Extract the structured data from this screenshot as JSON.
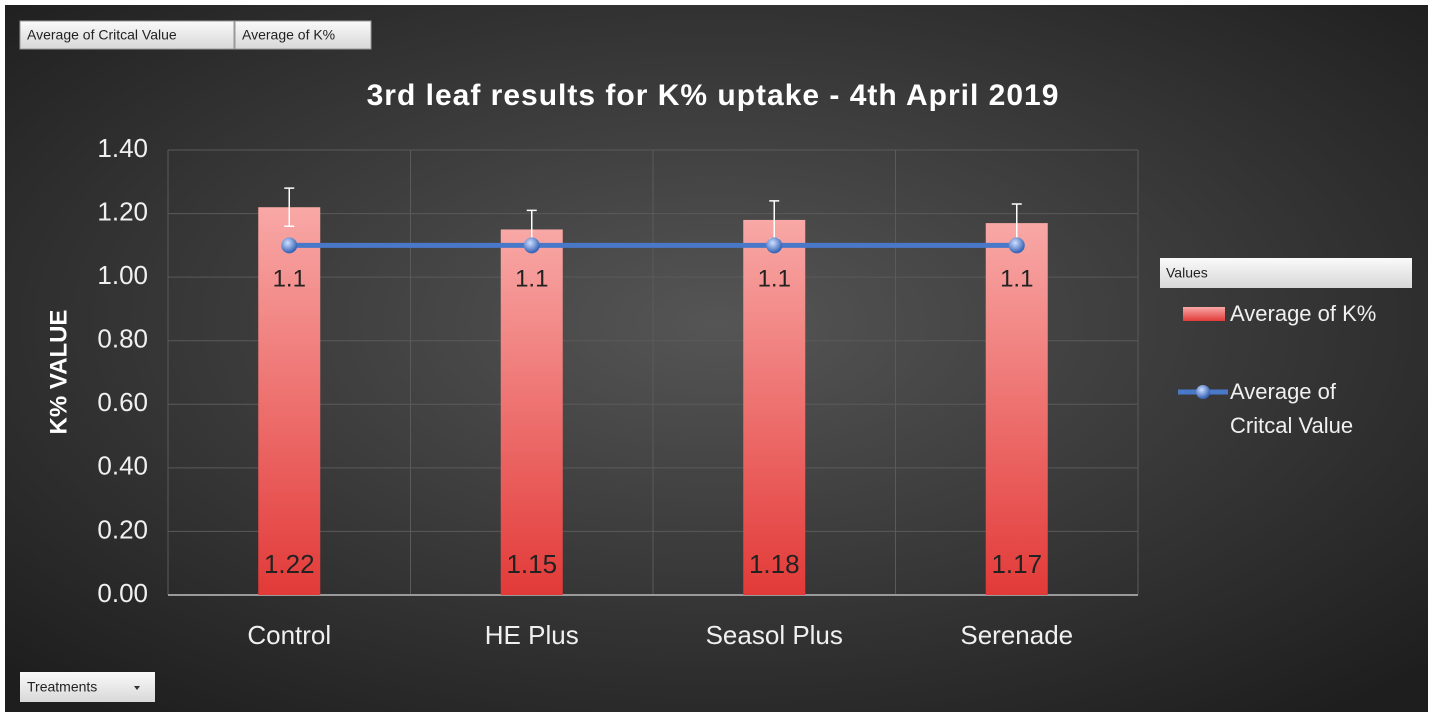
{
  "chart_data": {
    "type": "bar",
    "title": "3rd leaf results for K% uptake - 4th April 2019",
    "y_label": "K% VALUE",
    "filter_buttons": [
      "Average of Critcal Value",
      "Average of K%"
    ],
    "axis_field_button": "Treatments",
    "legend_title": "Values",
    "categories": [
      "Control",
      "HE Plus",
      "Seasol Plus",
      "Serenade"
    ],
    "series": [
      {
        "name": "Average of K%",
        "type": "bar",
        "color": "#e8403f",
        "values": [
          1.22,
          1.15,
          1.18,
          1.17
        ],
        "errors": [
          0.06,
          0.06,
          0.06,
          0.06
        ]
      },
      {
        "name": "Average of Critcal Value",
        "type": "line",
        "color": "#4a78c8",
        "values": [
          1.1,
          1.1,
          1.1,
          1.1
        ]
      }
    ],
    "ylim": [
      0,
      1.4
    ],
    "yticks": [
      {
        "value": 0,
        "label": "0.00"
      },
      {
        "value": 0.2,
        "label": "0.20"
      },
      {
        "value": 0.4,
        "label": "0.40"
      },
      {
        "value": 0.6,
        "label": "0.60"
      },
      {
        "value": 0.8,
        "label": "0.80"
      },
      {
        "value": 1,
        "label": "1.00"
      },
      {
        "value": 1.2,
        "label": "1.20"
      },
      {
        "value": 1.4,
        "label": "1.40"
      }
    ],
    "grid": true,
    "legend": "right"
  }
}
